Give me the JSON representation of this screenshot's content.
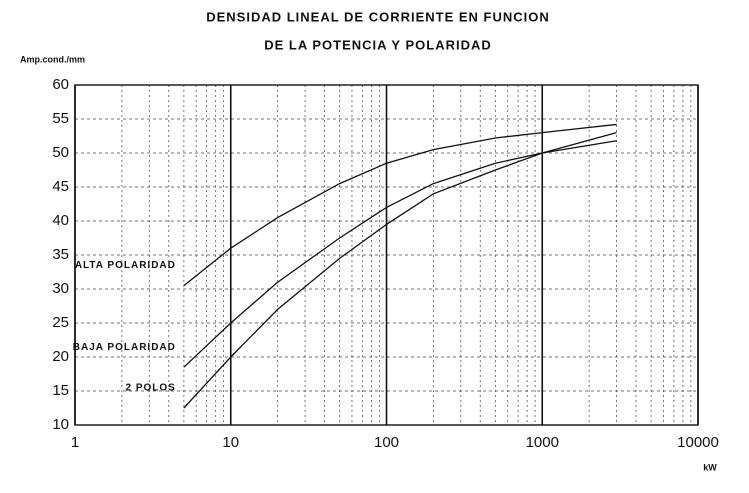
{
  "chart_data": {
    "type": "line",
    "title": "DENSIDAD LINEAL DE CORRIENTE EN FUNCION",
    "subtitle": "DE LA POTENCIA Y POLARIDAD",
    "y_label": "Amp.cond./mm",
    "x_label": "kW",
    "x_scale": "log",
    "xlim": [
      1,
      10000
    ],
    "ylim": [
      10,
      60
    ],
    "xticks": [
      1,
      10,
      100,
      1000,
      10000
    ],
    "yticks": [
      10,
      15,
      20,
      25,
      30,
      35,
      40,
      45,
      50,
      55,
      60
    ],
    "x_minor_ticks": [
      2,
      3,
      4,
      5,
      6,
      7,
      8,
      9,
      20,
      30,
      40,
      50,
      60,
      70,
      80,
      90,
      200,
      300,
      400,
      500,
      600,
      700,
      800,
      900,
      2000,
      3000,
      4000,
      5000,
      6000,
      7000,
      8000,
      9000
    ],
    "grid": true,
    "x": [
      5,
      10,
      20,
      50,
      100,
      200,
      500,
      1000,
      3000
    ],
    "series": [
      {
        "name": "ALTA POLARIDAD",
        "color": "#111111",
        "values": [
          30.5,
          36,
          40.5,
          45.5,
          48.5,
          50.5,
          52.2,
          53,
          54.2
        ]
      },
      {
        "name": "BAJA POLARIDAD",
        "color": "#111111",
        "values": [
          18.5,
          25,
          31,
          37.5,
          42,
          45.5,
          48.5,
          50,
          51.8
        ]
      },
      {
        "name": "2 POLOS",
        "color": "#111111",
        "values": [
          12.5,
          20,
          27,
          34.5,
          39.5,
          44,
          47.5,
          50,
          53
        ]
      }
    ]
  }
}
